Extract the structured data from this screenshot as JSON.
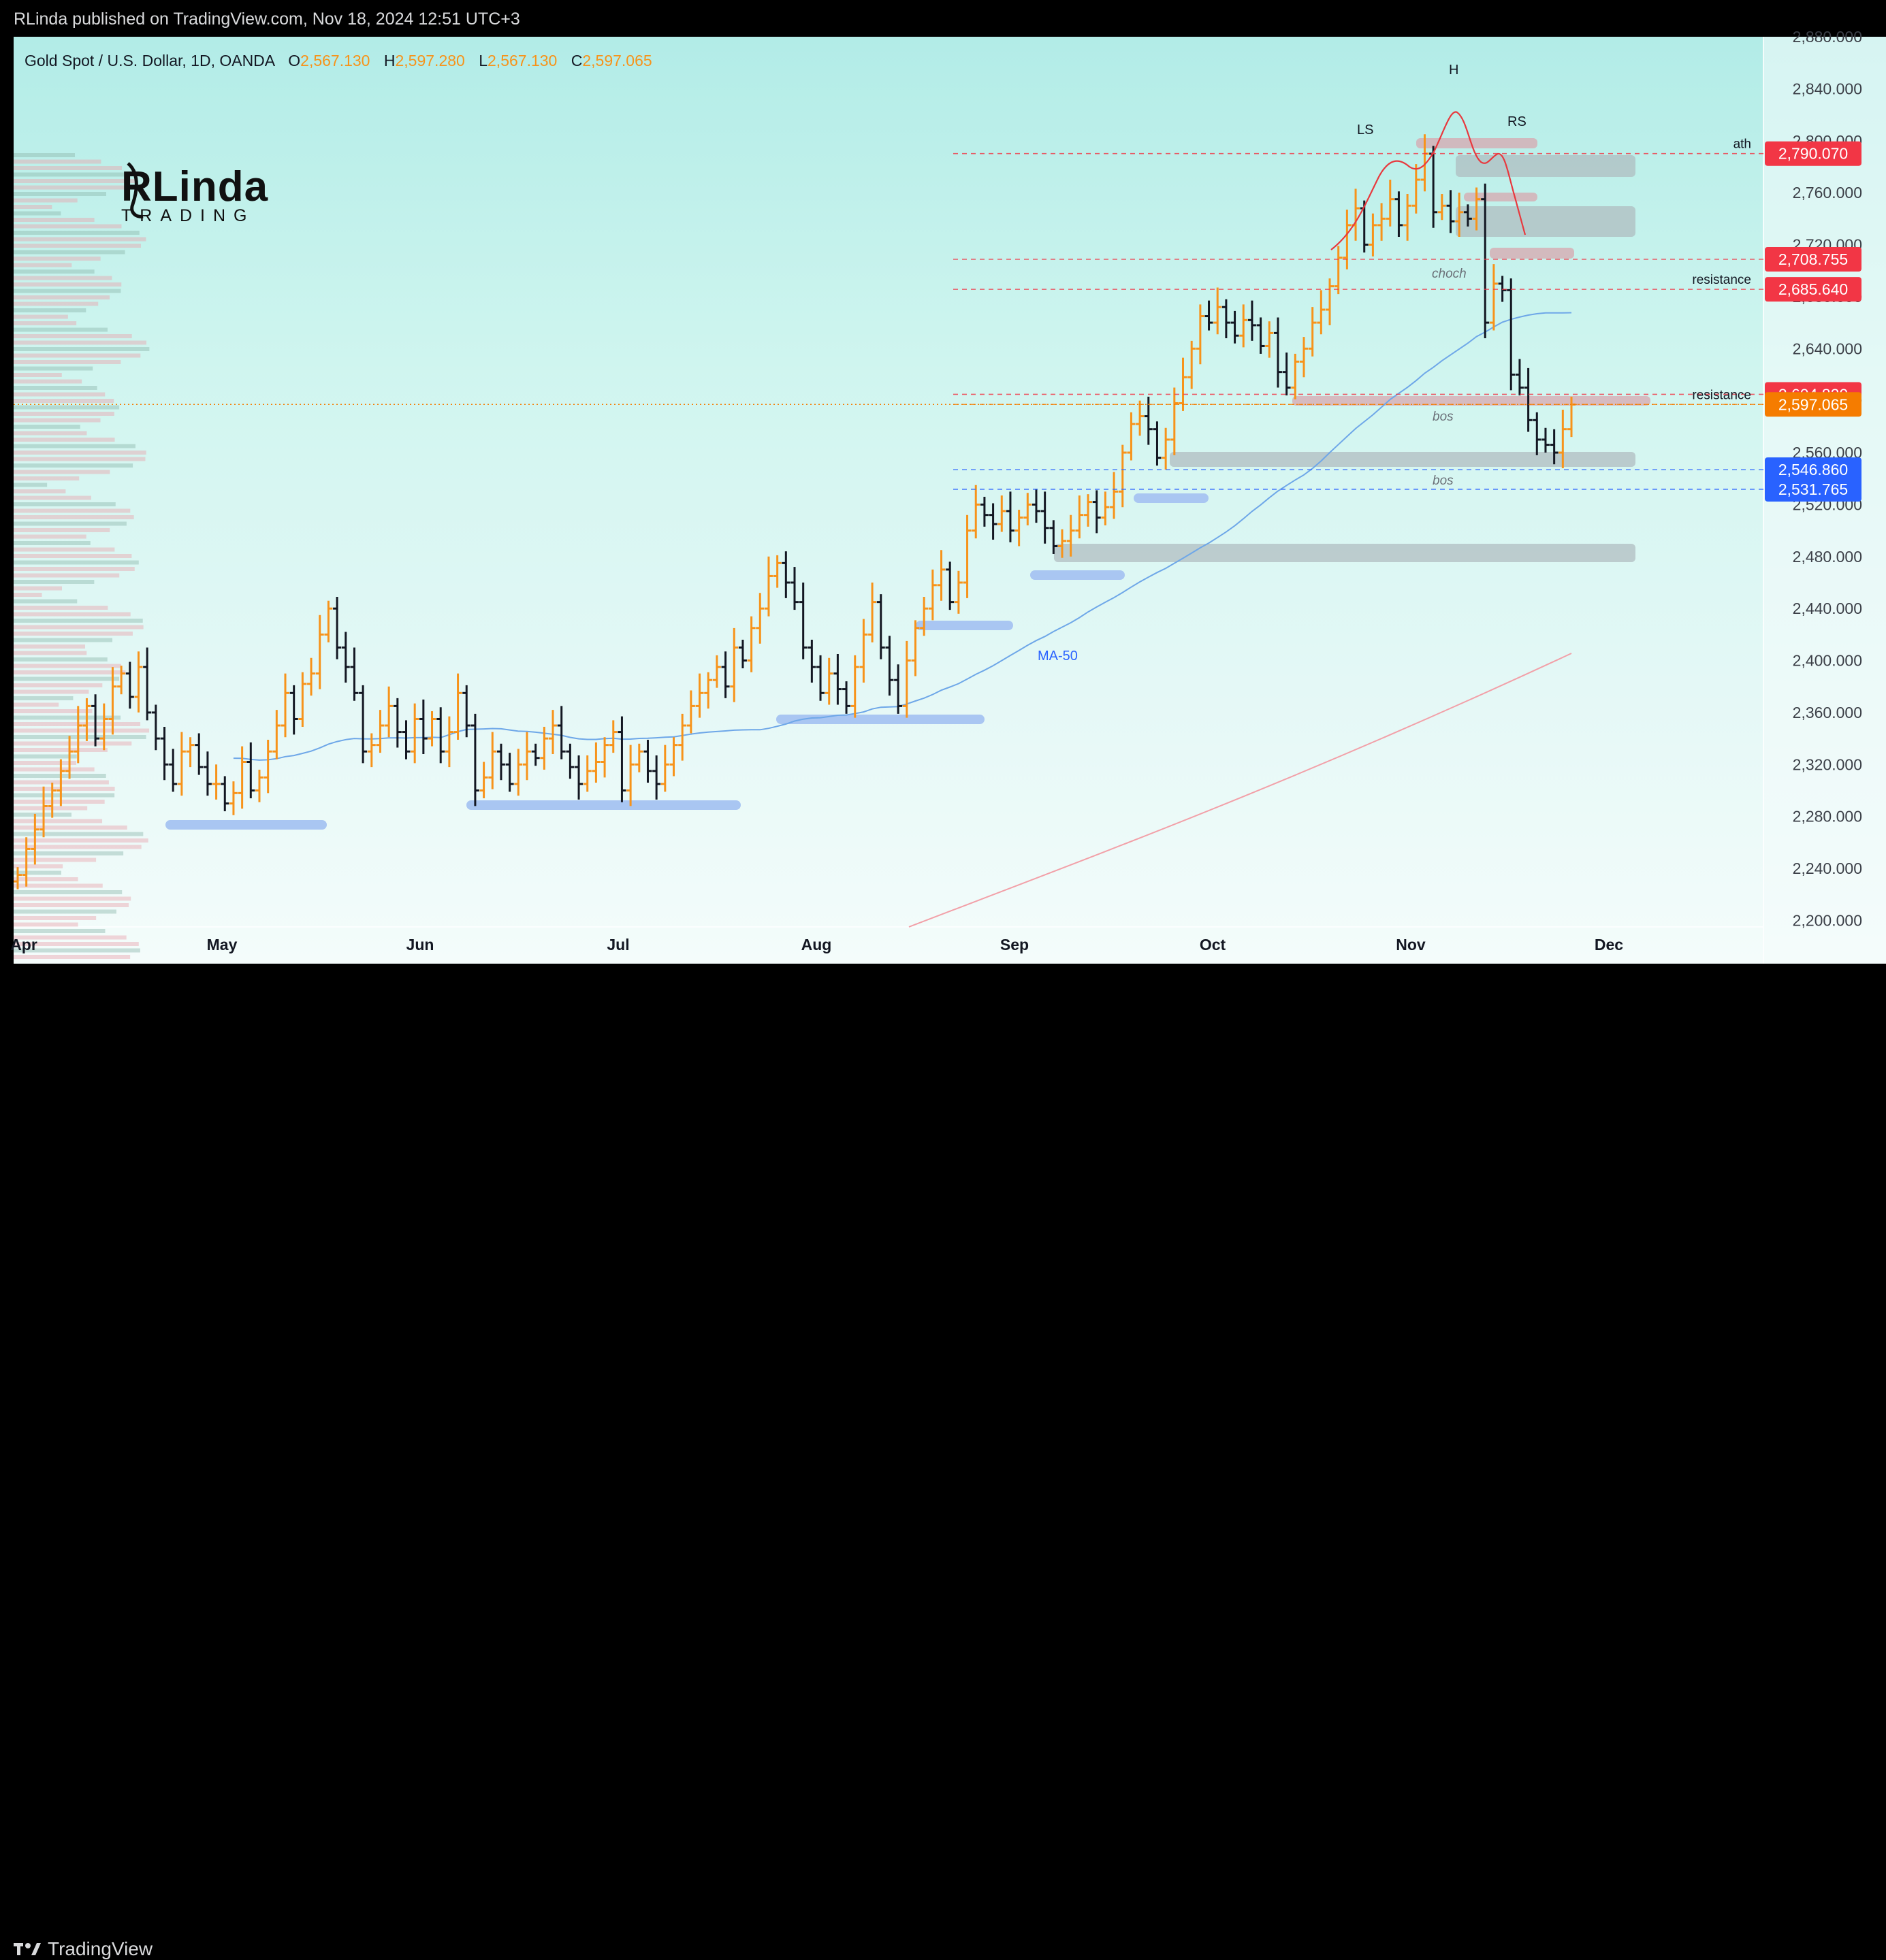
{
  "header": {
    "published": "RLinda published on TradingView.com, Nov 18, 2024 12:51 UTC+3"
  },
  "legend": {
    "symbol": "Gold Spot / U.S. Dollar, 1D, OANDA",
    "o_label": "O",
    "o_value": "2,567.130",
    "h_label": "H",
    "h_value": "2,597.280",
    "l_label": "L",
    "l_value": "2,567.130",
    "c_label": "C",
    "c_value": "2,597.065"
  },
  "logo": {
    "top": "RLinda",
    "bottom": "TRADING"
  },
  "footer": {
    "brand": "TradingView"
  },
  "colors": {
    "bull": "#f7931a",
    "bear": "#131722",
    "ma50": "#6ea7e8",
    "ma200": "#f2a0a8",
    "supply": "#d9a2ab",
    "demand_zone": "#aeb9bd",
    "support_bar": "#a9c6f2",
    "red_tag": "#f23645",
    "blue_tag": "#2962ff",
    "orange_tag": "#f57c00"
  },
  "chart_data": {
    "type": "ohlc",
    "title": "Gold Spot / U.S. Dollar, 1D, OANDA",
    "x_labels": [
      "Apr",
      "May",
      "Jun",
      "Jul",
      "Aug",
      "Sep",
      "Oct",
      "Nov",
      "Dec"
    ],
    "y_ticks": [
      "2,200.000",
      "2,240.000",
      "2,280.000",
      "2,320.000",
      "2,360.000",
      "2,400.000",
      "2,440.000",
      "2,480.000",
      "2,520.000",
      "2,560.000",
      "2,600.000",
      "2,640.000",
      "2,680.000",
      "2,720.000",
      "2,760.000",
      "2,800.000",
      "2,840.000",
      "2,880.000"
    ],
    "ylim": [
      2195,
      2880
    ],
    "closes": [
      2235,
      2255,
      2270,
      2288,
      2300,
      2315,
      2330,
      2350,
      2365,
      2340,
      2355,
      2380,
      2390,
      2372,
      2395,
      2360,
      2340,
      2320,
      2305,
      2330,
      2335,
      2318,
      2305,
      2305,
      2290,
      2298,
      2322,
      2300,
      2310,
      2330,
      2350,
      2375,
      2355,
      2382,
      2390,
      2420,
      2440,
      2410,
      2395,
      2375,
      2330,
      2335,
      2350,
      2365,
      2345,
      2330,
      2355,
      2340,
      2355,
      2330,
      2345,
      2375,
      2350,
      2300,
      2310,
      2330,
      2320,
      2305,
      2320,
      2330,
      2325,
      2340,
      2350,
      2330,
      2318,
      2305,
      2315,
      2322,
      2335,
      2345,
      2300,
      2320,
      2330,
      2315,
      2305,
      2320,
      2335,
      2350,
      2365,
      2375,
      2385,
      2395,
      2380,
      2410,
      2400,
      2425,
      2440,
      2465,
      2475,
      2460,
      2445,
      2410,
      2395,
      2375,
      2390,
      2378,
      2365,
      2395,
      2420,
      2445,
      2410,
      2385,
      2365,
      2400,
      2425,
      2440,
      2458,
      2470,
      2445,
      2460,
      2500,
      2520,
      2512,
      2505,
      2515,
      2500,
      2510,
      2520,
      2515,
      2502,
      2488,
      2492,
      2500,
      2512,
      2522,
      2510,
      2518,
      2530,
      2560,
      2582,
      2588,
      2578,
      2556,
      2570,
      2598,
      2618,
      2640,
      2665,
      2660,
      2672,
      2660,
      2650,
      2662,
      2658,
      2642,
      2652,
      2622,
      2610,
      2630,
      2640,
      2660,
      2670,
      2688,
      2710,
      2735,
      2748,
      2720,
      2735,
      2740,
      2755,
      2735,
      2750,
      2770,
      2790,
      2745,
      2750,
      2738,
      2745,
      2740,
      2755,
      2660,
      2690,
      2685,
      2620,
      2610,
      2585,
      2570,
      2566,
      2560,
      2578,
      2597
    ],
    "ma50_label": "MA-50",
    "levels": [
      {
        "label": "ath",
        "value": "2,790.070",
        "color": "red"
      },
      {
        "label": "",
        "value": "2,708.755",
        "color": "red"
      },
      {
        "label": "resistance",
        "value": "2,685.640",
        "color": "red"
      },
      {
        "label": "",
        "value": "2,604.820",
        "color": "red"
      },
      {
        "label": "resistance",
        "value": "2,597.065",
        "color": "orange"
      },
      {
        "label": "",
        "value": "2,546.860",
        "color": "blue"
      },
      {
        "label": "",
        "value": "2,531.765",
        "color": "blue"
      }
    ],
    "annotations": [
      "LS",
      "H",
      "RS",
      "choch",
      "bos",
      "bos"
    ]
  }
}
